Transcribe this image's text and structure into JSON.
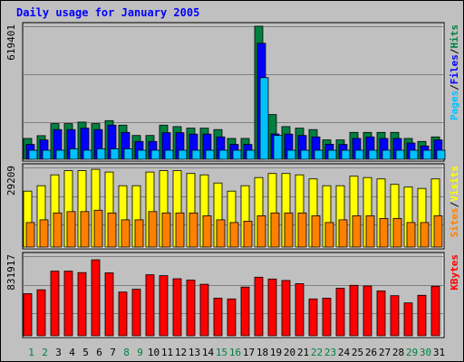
{
  "title": "Daily usage for January 2005",
  "colors": {
    "frame_bg": "#c0c0c0",
    "panel_bg": "#c0c0c0",
    "grid": "#808080",
    "title": "#0000ff",
    "hits": "#008040",
    "files": "#0000ff",
    "pages": "#00c0ff",
    "visits": "#ffff00",
    "sites": "#ff8000",
    "kbytes": "#ff0000",
    "weekday": "#000000",
    "weekend": "#008040"
  },
  "chart_data": [
    {
      "type": "bar",
      "panel": "top",
      "max_label": "619401",
      "right_legend": [
        {
          "text": "Pages",
          "color": "#00c0ff"
        },
        {
          "text": "/",
          "color": "#000000"
        },
        {
          "text": "Files",
          "color": "#0000ff"
        },
        {
          "text": "/",
          "color": "#000000"
        },
        {
          "text": "Hits",
          "color": "#008040"
        }
      ],
      "ylim": [
        0,
        619401
      ],
      "series": [
        {
          "name": "Hits",
          "values": [
            97000,
            110000,
            166000,
            166000,
            173000,
            166000,
            180000,
            159000,
            111000,
            111000,
            159000,
            152000,
            145000,
            145000,
            138000,
            97000,
            97000,
            619401,
            208000,
            152000,
            145000,
            138000,
            90000,
            90000,
            125000,
            125000,
            125000,
            125000,
            97000,
            83000,
            104000
          ]
        },
        {
          "name": "Files",
          "values": [
            69000,
            90000,
            138000,
            138000,
            145000,
            138000,
            159000,
            125000,
            83000,
            83000,
            124000,
            124000,
            117000,
            117000,
            104000,
            69000,
            69000,
            540000,
            118000,
            117000,
            111000,
            104000,
            70000,
            69000,
            97000,
            104000,
            97000,
            97000,
            76000,
            62000,
            90000
          ]
        },
        {
          "name": "Pages",
          "values": [
            42000,
            42000,
            42000,
            49000,
            42000,
            49000,
            49000,
            49000,
            42000,
            42000,
            42000,
            42000,
            42000,
            42000,
            42000,
            42000,
            42000,
            380000,
            111000,
            42000,
            42000,
            42000,
            42000,
            42000,
            42000,
            42000,
            42000,
            42000,
            42000,
            42000,
            42000
          ]
        }
      ]
    },
    {
      "type": "bar",
      "panel": "middle",
      "max_label": "29209",
      "right_legend": [
        {
          "text": "Sites",
          "color": "#ff8000"
        },
        {
          "text": "/",
          "color": "#000000"
        },
        {
          "text": "Visits",
          "color": "#ffff00"
        }
      ],
      "ylim": [
        0,
        29209
      ],
      "series": [
        {
          "name": "Visits",
          "values": [
            20500,
            22500,
            26500,
            28000,
            28000,
            28500,
            27500,
            22500,
            22500,
            27500,
            28000,
            28000,
            27000,
            26500,
            23500,
            20500,
            22500,
            25500,
            27000,
            27000,
            26500,
            25000,
            22500,
            22500,
            26000,
            25500,
            25000,
            23000,
            22000,
            21500,
            25000
          ]
        },
        {
          "name": "Sites",
          "values": [
            9000,
            10000,
            12500,
            13000,
            13000,
            13500,
            12500,
            10000,
            10000,
            13000,
            12500,
            12500,
            12500,
            11500,
            10000,
            9000,
            9500,
            11500,
            12500,
            12500,
            12500,
            11500,
            9000,
            10000,
            11500,
            11500,
            10500,
            10500,
            9000,
            9000,
            11500
          ]
        }
      ]
    },
    {
      "type": "bar",
      "panel": "bottom",
      "max_label": "831917",
      "right_legend": [
        {
          "text": "KBytes",
          "color": "#ff0000"
        }
      ],
      "ylim": [
        0,
        831917
      ],
      "series": [
        {
          "name": "KBytes",
          "values": [
            440000,
            480000,
            675000,
            675000,
            660000,
            793000,
            657000,
            457000,
            486000,
            637000,
            628000,
            596000,
            582000,
            538000,
            392000,
            385000,
            509000,
            612000,
            593000,
            578000,
            545000,
            385000,
            392000,
            496000,
            527000,
            520000,
            468000,
            419000,
            343000,
            423000,
            517000
          ]
        }
      ]
    }
  ],
  "x_labels": [
    {
      "day": "1",
      "weekend": true
    },
    {
      "day": "2",
      "weekend": true
    },
    {
      "day": "3",
      "weekend": false
    },
    {
      "day": "4",
      "weekend": false
    },
    {
      "day": "5",
      "weekend": false
    },
    {
      "day": "6",
      "weekend": false
    },
    {
      "day": "7",
      "weekend": false
    },
    {
      "day": "8",
      "weekend": true
    },
    {
      "day": "9",
      "weekend": true
    },
    {
      "day": "10",
      "weekend": false
    },
    {
      "day": "11",
      "weekend": false
    },
    {
      "day": "12",
      "weekend": false
    },
    {
      "day": "13",
      "weekend": false
    },
    {
      "day": "14",
      "weekend": false
    },
    {
      "day": "15",
      "weekend": true
    },
    {
      "day": "16",
      "weekend": true
    },
    {
      "day": "17",
      "weekend": false
    },
    {
      "day": "18",
      "weekend": false
    },
    {
      "day": "19",
      "weekend": false
    },
    {
      "day": "20",
      "weekend": false
    },
    {
      "day": "21",
      "weekend": false
    },
    {
      "day": "22",
      "weekend": true
    },
    {
      "day": "23",
      "weekend": true
    },
    {
      "day": "24",
      "weekend": false
    },
    {
      "day": "25",
      "weekend": false
    },
    {
      "day": "26",
      "weekend": false
    },
    {
      "day": "27",
      "weekend": false
    },
    {
      "day": "28",
      "weekend": false
    },
    {
      "day": "29",
      "weekend": true
    },
    {
      "day": "30",
      "weekend": true
    },
    {
      "day": "31",
      "weekend": false
    }
  ]
}
